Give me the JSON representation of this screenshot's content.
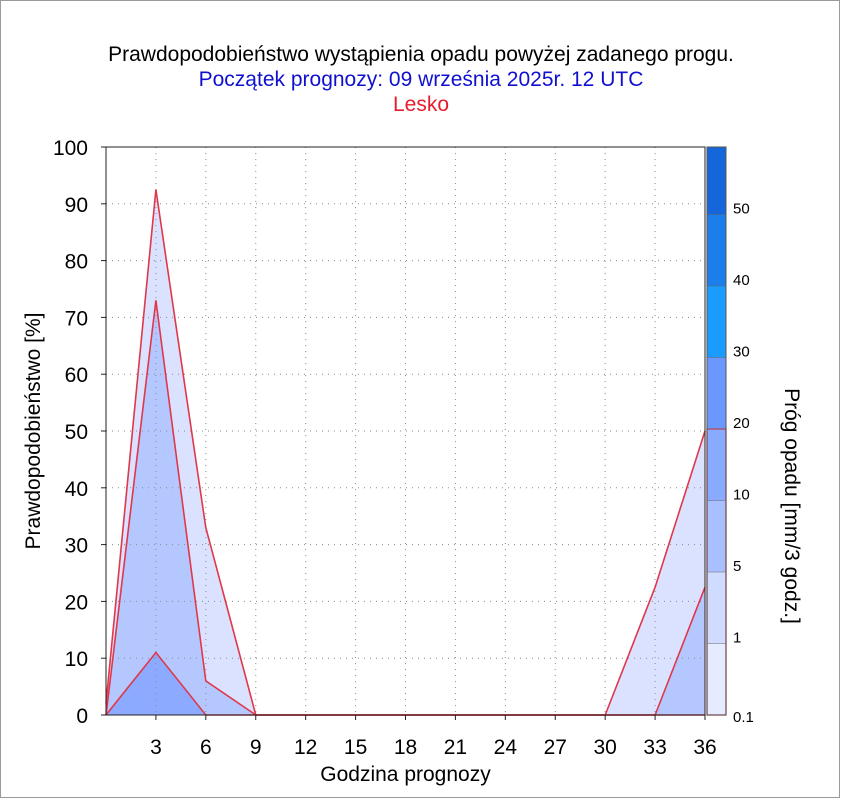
{
  "chart_data": {
    "type": "area",
    "title": "Prawdopodobieństwo wystąpienia opadu powyżej zadanego progu.",
    "subtitle": "Początek prognozy: 09 września 2025r. 12 UTC",
    "location": "Lesko",
    "xlabel": "Godzina prognozy",
    "ylabel": "Prawdopodobieństwo [%]",
    "colorbar_label": "Próg opadu [mm/3 godz.]",
    "xlim": [
      0,
      36
    ],
    "ylim": [
      0,
      100
    ],
    "x_ticks": [
      3,
      6,
      9,
      12,
      15,
      18,
      21,
      24,
      27,
      30,
      33,
      36
    ],
    "y_ticks": [
      0,
      10,
      20,
      30,
      40,
      50,
      60,
      70,
      80,
      90,
      100
    ],
    "grid": true,
    "x": [
      0,
      3,
      6,
      9,
      12,
      15,
      18,
      21,
      24,
      27,
      30,
      33,
      36
    ],
    "series": [
      {
        "threshold": 0.1,
        "color": "#dae2ff",
        "values": [
          2,
          92.5,
          33,
          0,
          0,
          0,
          0,
          0,
          0,
          0,
          0,
          22.5,
          50
        ]
      },
      {
        "threshold": 1,
        "color": "#b4c8ff",
        "values": [
          0,
          73,
          6,
          0,
          0,
          0,
          0,
          0,
          0,
          0,
          0,
          0,
          22.5
        ]
      },
      {
        "threshold": 5,
        "color": "#8caaff",
        "values": [
          0,
          11,
          0,
          0,
          0,
          0,
          0,
          0,
          0,
          0,
          0,
          0,
          0
        ]
      }
    ],
    "colorbar": {
      "tick_labels": [
        "0.1",
        "1",
        "5",
        "10",
        "20",
        "30",
        "40",
        "50"
      ],
      "colors": [
        "#e6ecff",
        "#d0dcff",
        "#a8c0ff",
        "#88aaff",
        "#6a98ff",
        "#1a9cff",
        "#1b7eea",
        "#1666db",
        "#1154cc",
        "#0b3cb8"
      ],
      "highlight_top_label": "20"
    }
  }
}
